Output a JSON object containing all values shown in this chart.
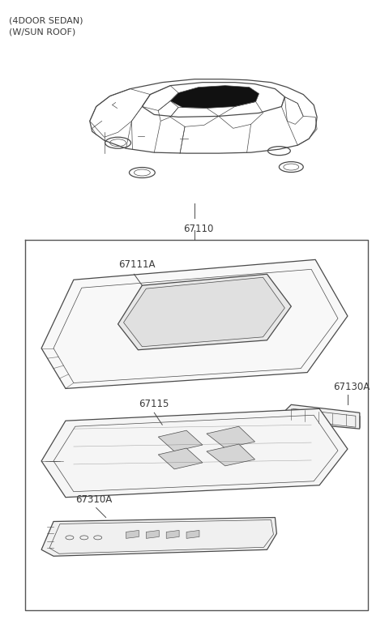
{
  "title_line1": "(4DOOR SEDAN)",
  "title_line2": "(W/SUN ROOF)",
  "bg_color": "#ffffff",
  "line_color": "#4a4a4a",
  "label_color": "#3a3a3a",
  "part_67110": "67110",
  "part_67111A": "67111A",
  "part_67115": "67115",
  "part_67130A": "67130A",
  "part_67310A": "67310A"
}
